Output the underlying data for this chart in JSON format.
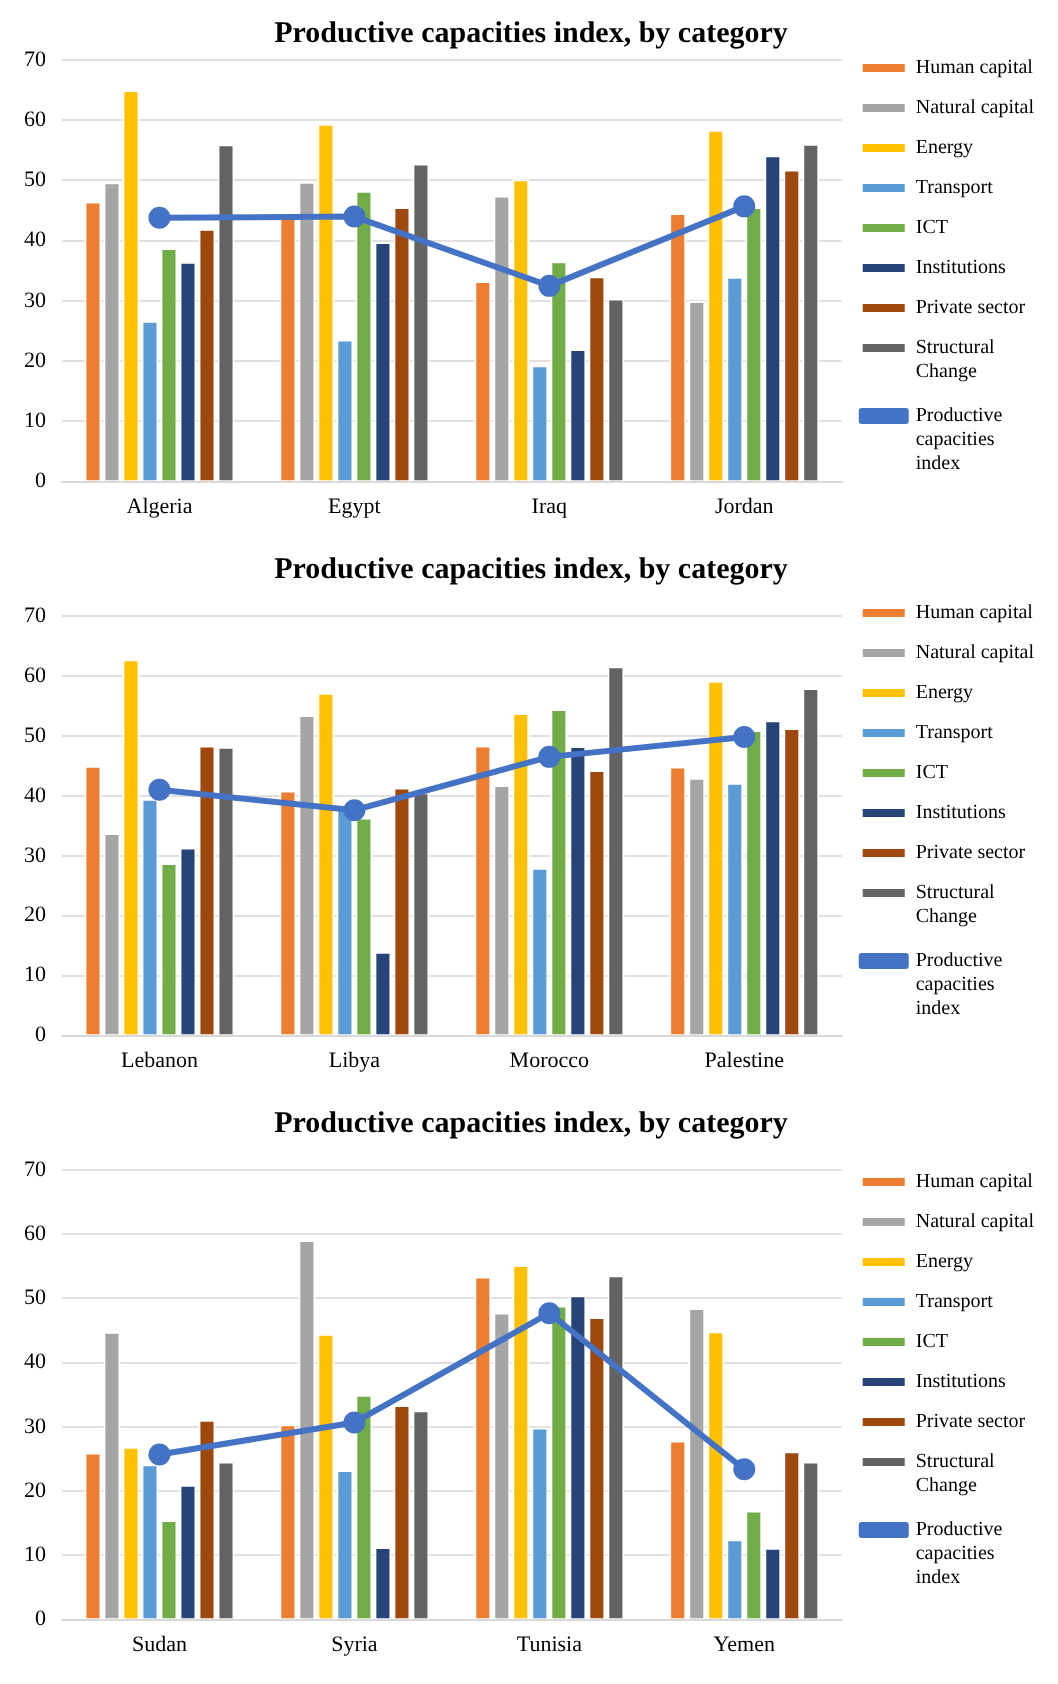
{
  "chart_data": [
    {
      "type": "bar",
      "title": "Productive capacities index, by category",
      "categories": [
        "Algeria",
        "Egypt",
        "Iraq",
        "Jordan"
      ],
      "ylim": [
        0,
        70
      ],
      "yticks": [
        0,
        10,
        20,
        30,
        40,
        50,
        60,
        70
      ],
      "grid": "y",
      "legend": "right",
      "series": [
        {
          "name": "Human capital",
          "color": "#ed7d31",
          "values": [
            46.5,
            44,
            33.3,
            44.6
          ]
        },
        {
          "name": "Natural capital",
          "color": "#a5a5a5",
          "values": [
            49.7,
            49.8,
            47.5,
            30
          ]
        },
        {
          "name": "Energy",
          "color": "#ffc000",
          "values": [
            65,
            59.4,
            50.2,
            58.4
          ]
        },
        {
          "name": "Transport",
          "color": "#5b9bd5",
          "values": [
            26.7,
            23.6,
            19.3,
            34
          ]
        },
        {
          "name": "ICT",
          "color": "#70ad47",
          "values": [
            38.8,
            48.3,
            36.6,
            45.6
          ]
        },
        {
          "name": "Institutions",
          "color": "#264478",
          "values": [
            36.5,
            39.8,
            22,
            54.2
          ]
        },
        {
          "name": "Private sector",
          "color": "#9e480e",
          "values": [
            42,
            45.6,
            34.1,
            51.8
          ]
        },
        {
          "name": "Structural Change",
          "color": "#636363",
          "values": [
            56,
            52.8,
            30.4,
            56.1
          ]
        },
        {
          "name": "Productive capacities index",
          "type": "line",
          "marker": "circle",
          "color": "#4472c4",
          "values": [
            43.8,
            44,
            32.5,
            45.7
          ]
        }
      ]
    },
    {
      "type": "bar",
      "title": "Productive capacities index, by category",
      "categories": [
        "Lebanon",
        "Libya",
        "Morocco",
        "Palestine"
      ],
      "ylim": [
        0,
        70
      ],
      "yticks": [
        0,
        10,
        20,
        30,
        40,
        50,
        60,
        70
      ],
      "grid": "y",
      "legend": "right",
      "series": [
        {
          "name": "Human capital",
          "color": "#ed7d31",
          "values": [
            45,
            40.9,
            48.4,
            44.9
          ]
        },
        {
          "name": "Natural capital",
          "color": "#a5a5a5",
          "values": [
            33.8,
            53.5,
            41.8,
            43
          ]
        },
        {
          "name": "Energy",
          "color": "#ffc000",
          "values": [
            62.8,
            57.2,
            53.8,
            59.2
          ]
        },
        {
          "name": "Transport",
          "color": "#5b9bd5",
          "values": [
            39.5,
            38.5,
            28,
            42.2
          ]
        },
        {
          "name": "ICT",
          "color": "#70ad47",
          "values": [
            28.8,
            36.4,
            54.5,
            51
          ]
        },
        {
          "name": "Institutions",
          "color": "#264478",
          "values": [
            31.4,
            14,
            48.3,
            52.6
          ]
        },
        {
          "name": "Private sector",
          "color": "#9e480e",
          "values": [
            48.4,
            41.4,
            44.3,
            51.3
          ]
        },
        {
          "name": "Structural Change",
          "color": "#636363",
          "values": [
            48.2,
            40.6,
            61.6,
            58
          ]
        },
        {
          "name": "Productive capacities index",
          "type": "line",
          "marker": "circle",
          "color": "#4472c4",
          "values": [
            41,
            37.6,
            46.5,
            49.8
          ]
        }
      ]
    },
    {
      "type": "bar",
      "title": "Productive capacities index, by category",
      "categories": [
        "Sudan",
        "Syria",
        "Tunisia",
        "Yemen"
      ],
      "ylim": [
        0,
        70
      ],
      "yticks": [
        0,
        10,
        20,
        30,
        40,
        50,
        60,
        70
      ],
      "grid": "y",
      "legend": "right",
      "series": [
        {
          "name": "Human capital",
          "color": "#ed7d31",
          "values": [
            26,
            30.4,
            53.4,
            27.9
          ]
        },
        {
          "name": "Natural capital",
          "color": "#a5a5a5",
          "values": [
            44.8,
            59.1,
            47.8,
            48.5
          ]
        },
        {
          "name": "Energy",
          "color": "#ffc000",
          "values": [
            26.9,
            44.5,
            55.2,
            44.9
          ]
        },
        {
          "name": "Transport",
          "color": "#5b9bd5",
          "values": [
            24.2,
            23.3,
            29.9,
            12.5
          ]
        },
        {
          "name": "ICT",
          "color": "#70ad47",
          "values": [
            15.5,
            35,
            48.9,
            17
          ]
        },
        {
          "name": "Institutions",
          "color": "#264478",
          "values": [
            21,
            11.3,
            50.5,
            11.2
          ]
        },
        {
          "name": "Private sector",
          "color": "#9e480e",
          "values": [
            31.1,
            33.4,
            47.1,
            26.2
          ]
        },
        {
          "name": "Structural Change",
          "color": "#636363",
          "values": [
            24.6,
            32.6,
            53.6,
            24.6
          ]
        },
        {
          "name": "Productive capacities index",
          "type": "line",
          "marker": "circle",
          "color": "#4472c4",
          "values": [
            25.7,
            30.7,
            47.7,
            23.4
          ]
        }
      ]
    }
  ]
}
